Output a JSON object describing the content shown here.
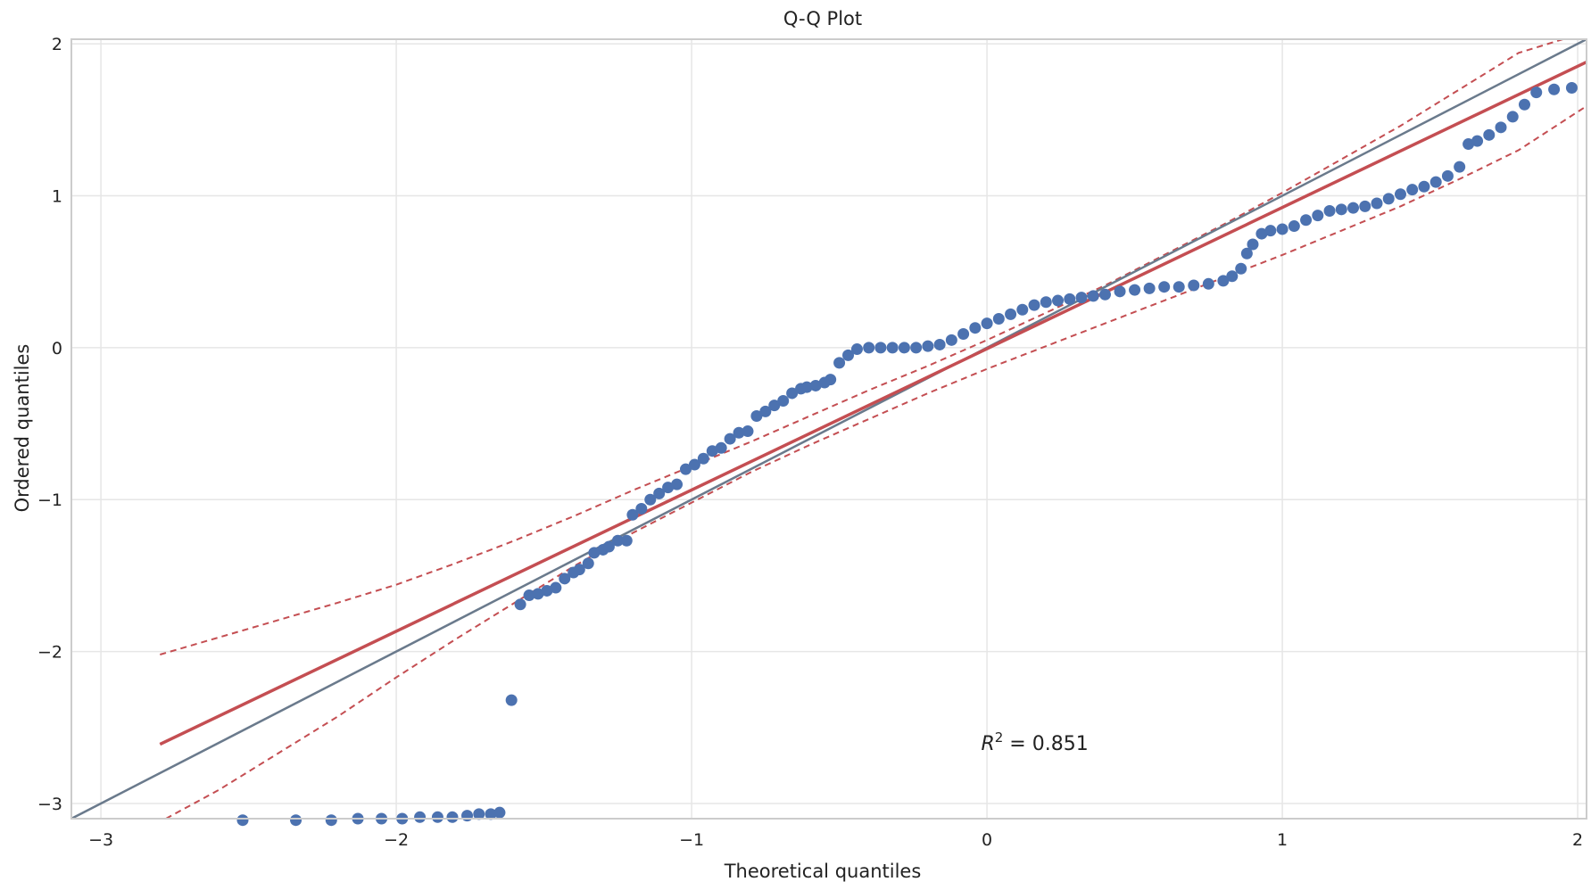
{
  "chart_data": {
    "type": "scatter",
    "title": "Q-Q Plot",
    "xlabel": "Theoretical quantiles",
    "ylabel": "Ordered quantiles",
    "xlim": [
      -3.1,
      2.03
    ],
    "ylim": [
      -3.1,
      2.03
    ],
    "x_ticks": [
      -3,
      -2,
      -1,
      0,
      1,
      2
    ],
    "y_ticks": [
      -3,
      -2,
      -1,
      0,
      1,
      2
    ],
    "x_tick_labels": [
      "−3",
      "−2",
      "−1",
      "0",
      "1",
      "2"
    ],
    "y_tick_labels": [
      "−3",
      "−2",
      "−1",
      "0",
      "1",
      "2"
    ],
    "grid": true,
    "annotation": {
      "label": "R",
      "superscript": "2",
      "value_text": " = 0.851",
      "x": -0.02,
      "y": -2.6
    },
    "colors": {
      "points": "#4c72b0",
      "fit_line": "#c44e52",
      "identity_line": "#6a7a8c",
      "grid": "#e6e6e6",
      "frame": "#cccccc"
    },
    "identity_line": {
      "x": [
        -3.1,
        2.03
      ],
      "y": [
        -3.1,
        2.03
      ]
    },
    "fit_line": {
      "x": [
        -2.8,
        2.03
      ],
      "y": [
        -2.61,
        1.88
      ]
    },
    "confidence_upper": {
      "x": [
        -2.8,
        -2.5,
        -2.2,
        -2.0,
        -1.8,
        -1.6,
        -1.4,
        -1.2,
        -1.0,
        -0.8,
        -0.6,
        -0.4,
        -0.2,
        0.0,
        0.2,
        0.4,
        0.6,
        0.8,
        1.0,
        1.2,
        1.4,
        1.6,
        1.8,
        1.95
      ],
      "y": [
        -2.02,
        -1.85,
        -1.68,
        -1.56,
        -1.42,
        -1.27,
        -1.11,
        -0.94,
        -0.78,
        -0.62,
        -0.45,
        -0.28,
        -0.12,
        0.05,
        0.23,
        0.41,
        0.61,
        0.81,
        1.02,
        1.24,
        1.46,
        1.7,
        1.94,
        2.08
      ]
    },
    "confidence_lower": {
      "x": [
        -2.78,
        -2.6,
        -2.4,
        -2.2,
        -2.0,
        -1.8,
        -1.6,
        -1.4,
        -1.2,
        -1.0,
        -0.8,
        -0.6,
        -0.4,
        -0.2,
        0.0,
        0.2,
        0.4,
        0.6,
        0.8,
        1.0,
        1.2,
        1.4,
        1.6,
        1.8,
        2.03
      ],
      "y": [
        -3.1,
        -2.91,
        -2.67,
        -2.43,
        -2.17,
        -1.92,
        -1.68,
        -1.44,
        -1.22,
        -1.02,
        -0.82,
        -0.64,
        -0.47,
        -0.3,
        -0.14,
        0.01,
        0.16,
        0.31,
        0.46,
        0.61,
        0.77,
        0.93,
        1.11,
        1.3,
        1.59
      ]
    },
    "points": {
      "x": [
        -2.52,
        -2.34,
        -2.22,
        -2.13,
        -2.05,
        -1.98,
        -1.92,
        -1.86,
        -1.81,
        -1.76,
        -1.72,
        -1.68,
        -1.65,
        -1.61,
        -1.58,
        -1.55,
        -1.52,
        -1.49,
        -1.46,
        -1.43,
        -1.4,
        -1.38,
        -1.35,
        -1.33,
        -1.3,
        -1.28,
        -1.25,
        -1.22,
        -1.2,
        -1.17,
        -1.14,
        -1.11,
        -1.08,
        -1.05,
        -1.02,
        -0.99,
        -0.96,
        -0.93,
        -0.9,
        -0.87,
        -0.84,
        -0.81,
        -0.78,
        -0.75,
        -0.72,
        -0.69,
        -0.66,
        -0.63,
        -0.61,
        -0.58,
        -0.55,
        -0.53,
        -0.5,
        -0.47,
        -0.44,
        -0.4,
        -0.36,
        -0.32,
        -0.28,
        -0.24,
        -0.2,
        -0.16,
        -0.12,
        -0.08,
        -0.04,
        0.0,
        0.04,
        0.08,
        0.12,
        0.16,
        0.2,
        0.24,
        0.28,
        0.32,
        0.36,
        0.4,
        0.45,
        0.5,
        0.55,
        0.6,
        0.65,
        0.7,
        0.75,
        0.8,
        0.83,
        0.86,
        0.88,
        0.9,
        0.93,
        0.96,
        1.0,
        1.04,
        1.08,
        1.12,
        1.16,
        1.2,
        1.24,
        1.28,
        1.32,
        1.36,
        1.4,
        1.44,
        1.48,
        1.52,
        1.56,
        1.6,
        1.63,
        1.66,
        1.7,
        1.74,
        1.78,
        1.82,
        1.86,
        1.92,
        1.98
      ],
      "y": [
        -3.11,
        -3.11,
        -3.11,
        -3.1,
        -3.1,
        -3.1,
        -3.09,
        -3.09,
        -3.09,
        -3.08,
        -3.07,
        -3.07,
        -3.06,
        -2.32,
        -1.69,
        -1.63,
        -1.62,
        -1.6,
        -1.58,
        -1.52,
        -1.48,
        -1.46,
        -1.42,
        -1.35,
        -1.33,
        -1.31,
        -1.27,
        -1.27,
        -1.1,
        -1.06,
        -1.0,
        -0.96,
        -0.92,
        -0.9,
        -0.8,
        -0.77,
        -0.73,
        -0.68,
        -0.66,
        -0.6,
        -0.56,
        -0.55,
        -0.45,
        -0.42,
        -0.38,
        -0.35,
        -0.3,
        -0.27,
        -0.26,
        -0.25,
        -0.23,
        -0.21,
        -0.1,
        -0.05,
        -0.01,
        0.0,
        0.0,
        0.0,
        0.0,
        0.0,
        0.01,
        0.02,
        0.05,
        0.09,
        0.13,
        0.16,
        0.19,
        0.22,
        0.25,
        0.28,
        0.3,
        0.31,
        0.32,
        0.33,
        0.34,
        0.35,
        0.37,
        0.38,
        0.39,
        0.4,
        0.4,
        0.41,
        0.42,
        0.44,
        0.47,
        0.52,
        0.62,
        0.68,
        0.75,
        0.77,
        0.78,
        0.8,
        0.84,
        0.87,
        0.9,
        0.91,
        0.92,
        0.93,
        0.95,
        0.98,
        1.01,
        1.04,
        1.06,
        1.09,
        1.13,
        1.19,
        1.34,
        1.36,
        1.4,
        1.45,
        1.52,
        1.6,
        1.68,
        1.7,
        1.71
      ]
    }
  }
}
